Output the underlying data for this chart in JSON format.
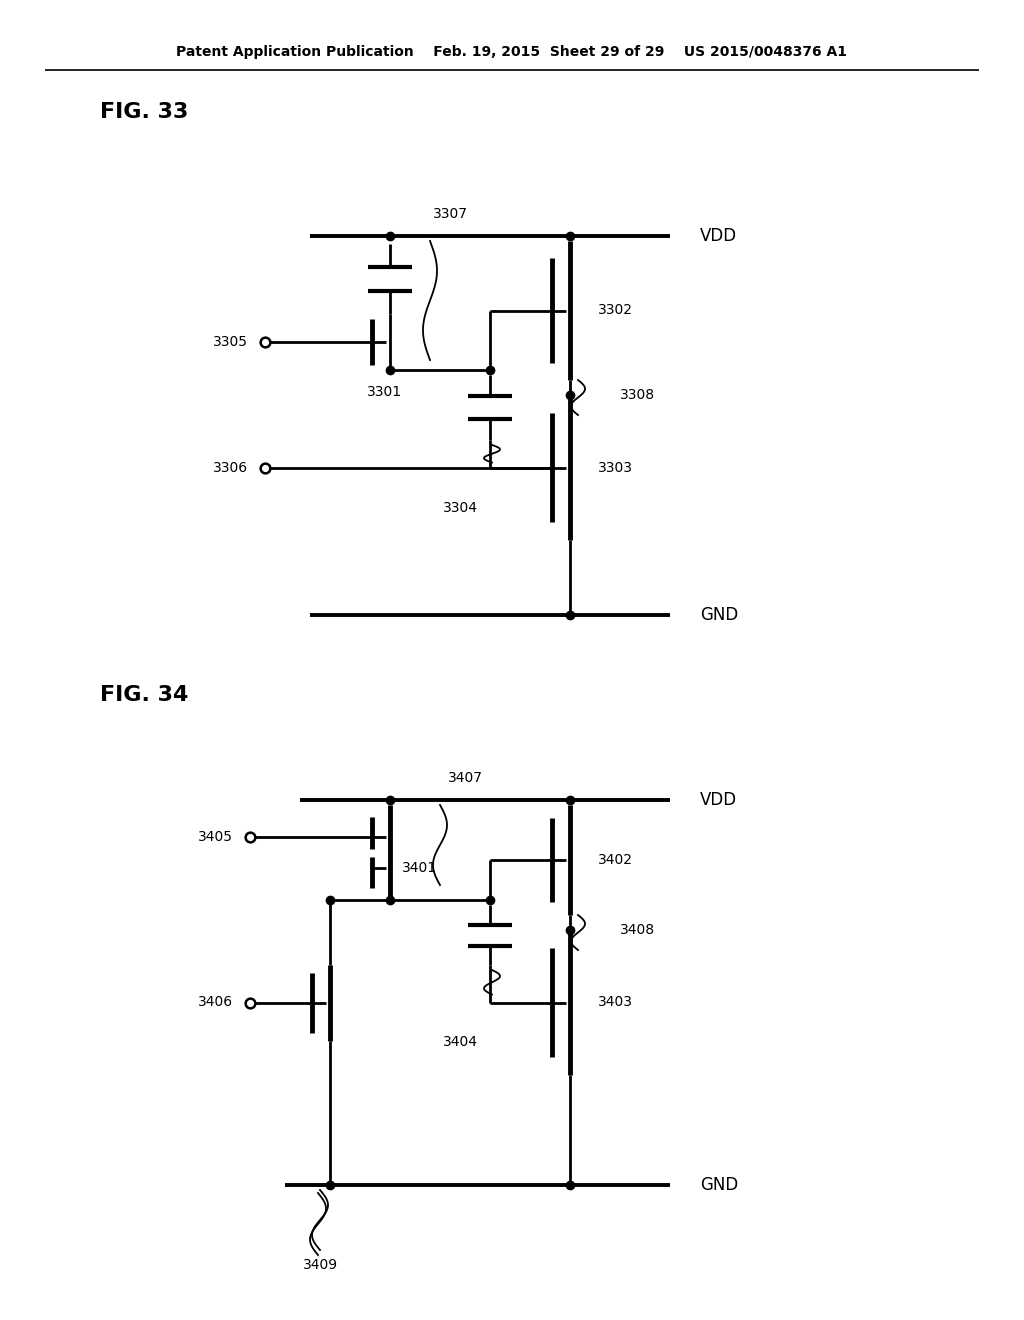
{
  "bg_color": "#ffffff",
  "lc": "#000000",
  "lw": 2.0,
  "lw_thick": 3.5,
  "ds": 6,
  "header": "Patent Application Publication    Feb. 19, 2015  Sheet 29 of 29    US 2015/0048376 A1",
  "fig33_label": "FIG. 33",
  "fig34_label": "FIG. 34"
}
